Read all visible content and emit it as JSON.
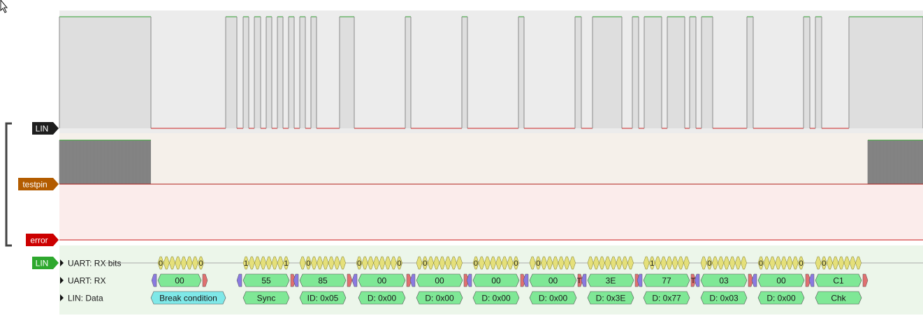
{
  "channels": {
    "lin": {
      "label": "LIN"
    },
    "testpin": {
      "label": "testpin"
    },
    "error": {
      "label": "error"
    },
    "lin_decoder": {
      "label": "LIN"
    }
  },
  "decoder_rows": {
    "uart_rx_bits": {
      "label": "UART: RX bits"
    },
    "uart_rx": {
      "label": "UART: RX"
    },
    "lin_data": {
      "label": "LIN: Data"
    }
  },
  "uart_rx": {
    "bytes": [
      {
        "value": "00"
      },
      {
        "value": "55"
      },
      {
        "value": "85"
      },
      {
        "value": "00"
      },
      {
        "value": "00"
      },
      {
        "value": "00"
      },
      {
        "value": "00"
      },
      {
        "value": "3E"
      },
      {
        "value": "77"
      },
      {
        "value": "03"
      },
      {
        "value": "00"
      },
      {
        "value": "C1"
      }
    ],
    "stop_markers": [
      "T",
      "T"
    ]
  },
  "uart_rx_bits": {
    "bit_values": [
      [
        "0",
        "0"
      ],
      [
        "1",
        "1"
      ],
      [
        "0"
      ],
      [
        "0",
        "0"
      ],
      [
        "0"
      ],
      [
        "0",
        "0"
      ],
      [
        "0"
      ],
      [],
      [
        "1"
      ],
      [
        "0"
      ],
      [
        "0",
        "0"
      ],
      [
        "0"
      ]
    ]
  },
  "lin_data": {
    "items": [
      {
        "text": "Break condition",
        "kind": "break"
      },
      {
        "text": "Sync",
        "kind": "field"
      },
      {
        "text": "ID: 0x05",
        "kind": "field"
      },
      {
        "text": "D: 0x00",
        "kind": "field"
      },
      {
        "text": "D: 0x00",
        "kind": "field"
      },
      {
        "text": "D: 0x00",
        "kind": "field"
      },
      {
        "text": "D: 0x00",
        "kind": "field"
      },
      {
        "text": "D: 0x3E",
        "kind": "field"
      },
      {
        "text": "D: 0x77",
        "kind": "field"
      },
      {
        "text": "D: 0x03",
        "kind": "field"
      },
      {
        "text": "D: 0x00",
        "kind": "field"
      },
      {
        "text": "Chk",
        "kind": "field"
      }
    ]
  },
  "colors": {
    "lin_label_bg": "#1e1e1e",
    "testpin_label_bg": "#b35c00",
    "error_label_bg": "#cc0000",
    "decoder_label_bg": "#2ea82e",
    "trace_high": "#2e9e2e",
    "trace_low": "#cc2020",
    "bits_fill": "#e5e07a",
    "byte_fill": "#7fe896",
    "break_fill": "#7fe8e8",
    "start_fill": "#8a7ae0",
    "stop_fill": "#e07070"
  },
  "icons": {
    "cursor": "pointer-cursor-icon",
    "expand": "triangle-right-icon"
  }
}
